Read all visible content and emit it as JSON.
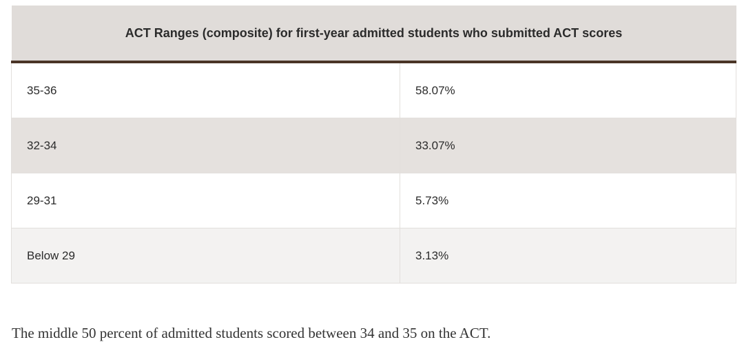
{
  "table": {
    "title": "ACT Ranges (composite) for first-year admitted students who submitted ACT scores",
    "rows": [
      [
        "35-36",
        "58.07%"
      ],
      [
        "32-34",
        "33.07%"
      ],
      [
        "29-31",
        "5.73%"
      ],
      [
        "Below 29",
        "3.13%"
      ]
    ]
  },
  "caption": "The middle 50 percent of admitted students scored between 34 and 35 on the ACT."
}
